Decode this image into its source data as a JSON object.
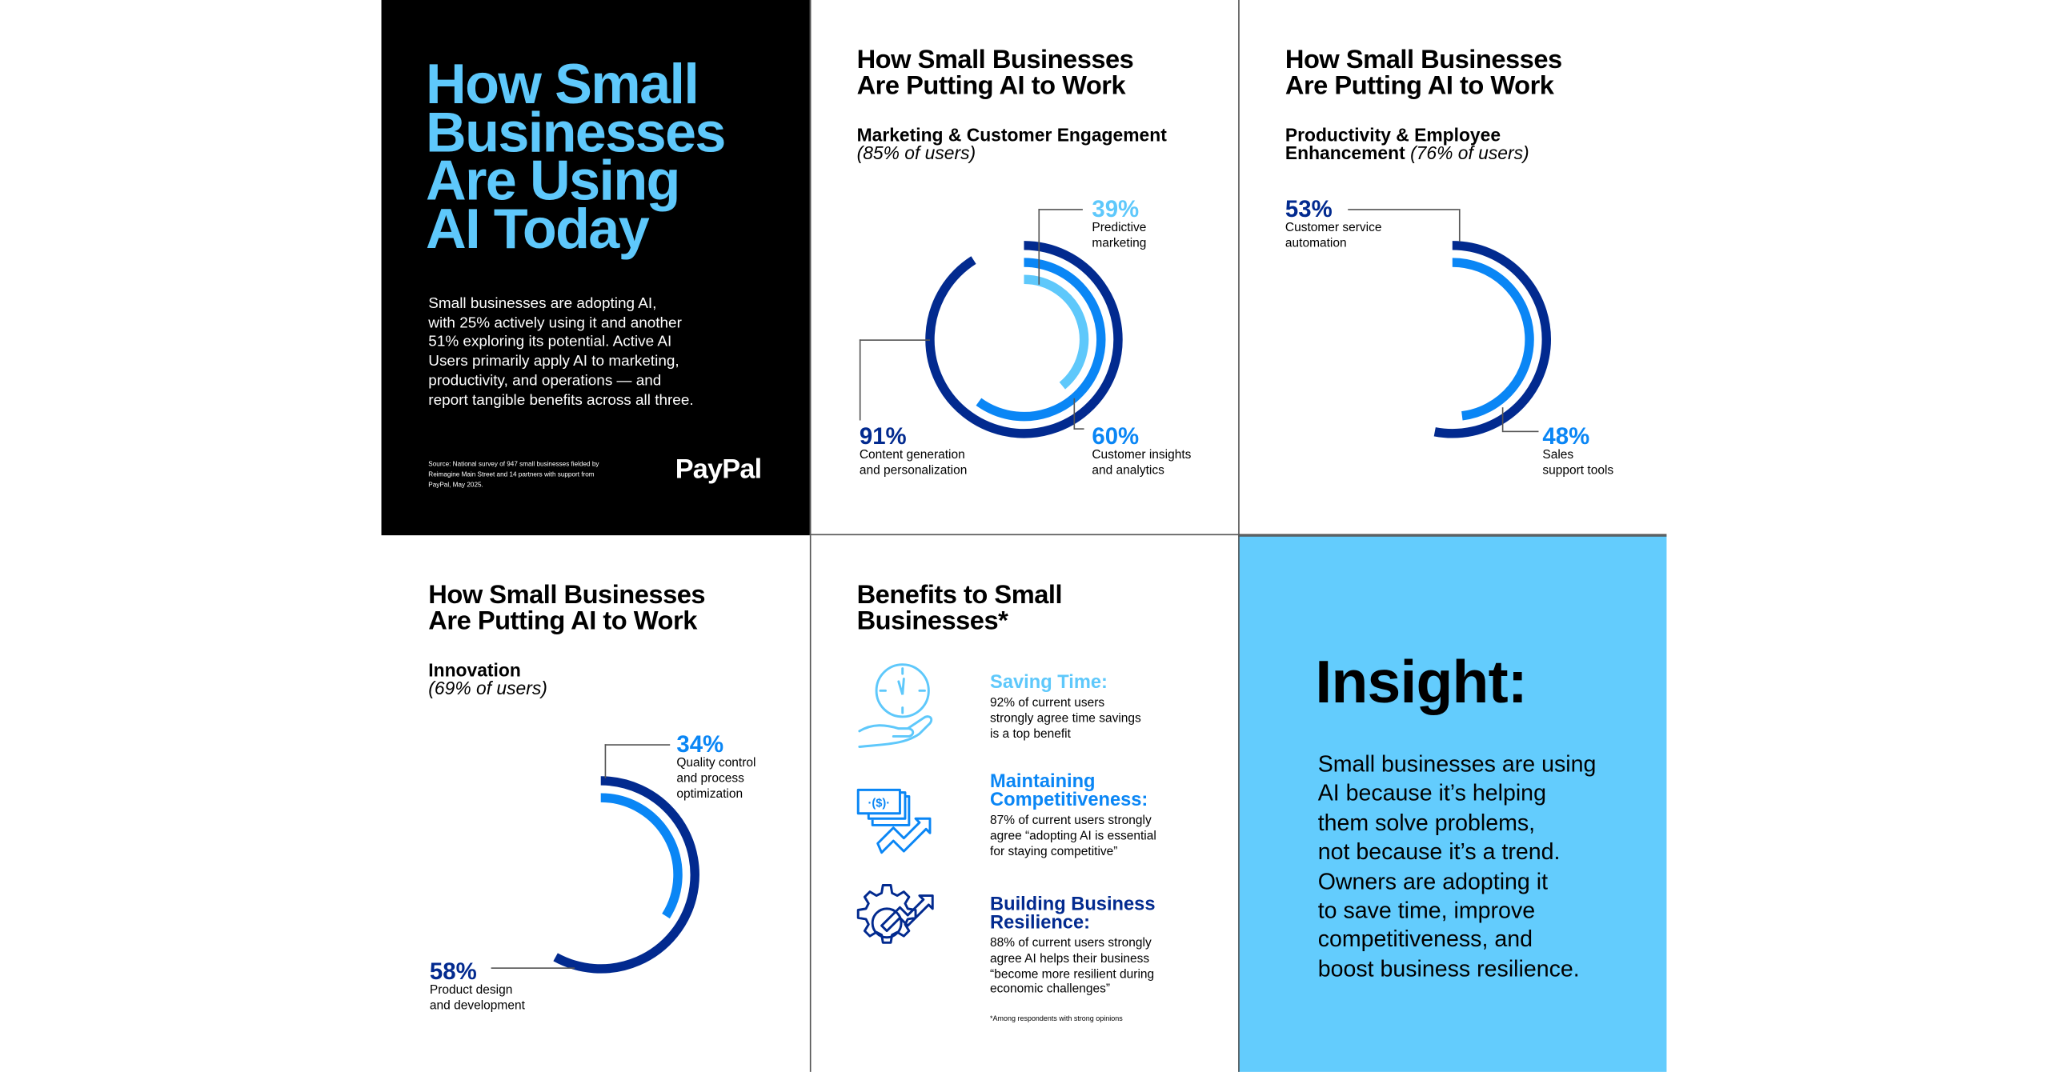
{
  "colors": {
    "navy": "#022a8f",
    "blue": "#0a86f5",
    "light": "#5ec8fb",
    "insight_bg": "#63ccfd",
    "black": "#000000"
  },
  "intro": {
    "title_lines": [
      "How Small",
      "Businesses",
      "Are Using",
      "AI Today"
    ],
    "body_lines": [
      "Small businesses are adopting AI,",
      "with 25% actively using it and another",
      "51% exploring its potential. Active AI",
      "Users primarily apply AI to marketing,",
      "productivity, and operations — and",
      "report tangible benefits across all three."
    ],
    "source_lines": [
      "Source: National survey of 947 small businesses fielded by",
      "Reimagine Main Street and 14 partners with support from",
      "PayPal, May 2025."
    ],
    "logo": "PayPal"
  },
  "panel_heading_lines": [
    "How Small Businesses",
    "Are Putting AI to Work"
  ],
  "marketing": {
    "subtitle": "Marketing & Customer Engagement",
    "share": "(85% of users)"
  },
  "productivity": {
    "subtitle_line1": "Productivity & Employee",
    "subtitle_line2": "Enhancement",
    "share": "(76% of users)"
  },
  "innovation": {
    "subtitle": "Innovation",
    "share": "(69% of users)"
  },
  "chart_data": [
    {
      "type": "radial-bar",
      "title": "Marketing & Customer Engagement (85% of users)",
      "series": [
        {
          "name": "Content generation and personalization",
          "label_lines": [
            "Content generation",
            "and personalization"
          ],
          "value": 91,
          "display": "91%",
          "color": "#022a8f"
        },
        {
          "name": "Customer insights and analytics",
          "label_lines": [
            "Customer insights",
            "and analytics"
          ],
          "value": 60,
          "display": "60%",
          "color": "#0a86f5"
        },
        {
          "name": "Predictive marketing",
          "label_lines": [
            "Predictive",
            "marketing"
          ],
          "value": 39,
          "display": "39%",
          "color": "#5ec8fb"
        }
      ]
    },
    {
      "type": "radial-bar",
      "title": "Productivity & Employee Enhancement (76% of users)",
      "series": [
        {
          "name": "Customer service automation",
          "label_lines": [
            "Customer service",
            "automation"
          ],
          "value": 53,
          "display": "53%",
          "color": "#022a8f"
        },
        {
          "name": "Sales support tools",
          "label_lines": [
            "Sales",
            "support tools"
          ],
          "value": 48,
          "display": "48%",
          "color": "#0a86f5"
        }
      ]
    },
    {
      "type": "radial-bar",
      "title": "Innovation (69% of users)",
      "series": [
        {
          "name": "Product design and development",
          "label_lines": [
            "Product design",
            "and development"
          ],
          "value": 58,
          "display": "58%",
          "color": "#022a8f"
        },
        {
          "name": "Quality control and process optimization",
          "label_lines": [
            "Quality control",
            "and process",
            "optimization"
          ],
          "value": 34,
          "display": "34%",
          "color": "#0a86f5"
        }
      ]
    }
  ],
  "benefits": {
    "title_lines": [
      "Benefits to Small",
      "Businesses*"
    ],
    "items": [
      {
        "icon": "clock-hand-icon",
        "title_lines": [
          "Saving Time:"
        ],
        "text_lines": [
          "92% of current users",
          "strongly agree time savings",
          "is a top benefit"
        ],
        "color": "#5ec8fb"
      },
      {
        "icon": "money-growth-icon",
        "title_lines": [
          "Maintaining",
          "Competitiveness:"
        ],
        "text_lines": [
          "87% of current users strongly",
          "agree “adopting AI is essential",
          "for staying competitive”"
        ],
        "color": "#0a86f5"
      },
      {
        "icon": "gear-growth-icon",
        "title_lines": [
          "Building Business",
          "Resilience:"
        ],
        "text_lines": [
          "88% of current users strongly",
          "agree AI helps their business",
          "“become more resilient during",
          "economic challenges”"
        ],
        "color": "#022a8f"
      }
    ],
    "footnote": "*Among respondents with strong opinions"
  },
  "insight": {
    "title": "Insight:",
    "body_lines": [
      "Small businesses are using",
      "AI because it’s helping",
      "them solve problems,",
      "not because it’s a trend.",
      "Owners are adopting it",
      "to save time, improve",
      "competitiveness, and",
      "boost business resilience."
    ]
  }
}
